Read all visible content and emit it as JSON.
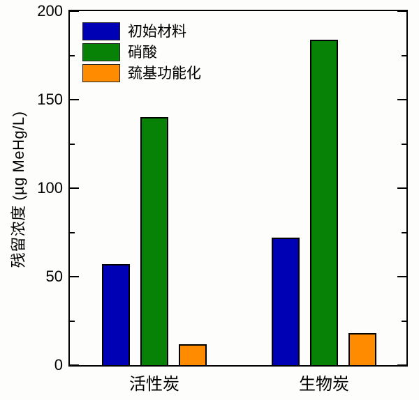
{
  "chart_data": {
    "type": "bar",
    "title": "",
    "categories": [
      "活性炭",
      "生物炭"
    ],
    "series": [
      {
        "name": "初始材料",
        "color": "#0000b4",
        "values": [
          57,
          72
        ]
      },
      {
        "name": "硝酸",
        "color": "#078207",
        "values": [
          140,
          184
        ]
      },
      {
        "name": "巯基功能化",
        "color": "#ff8c00",
        "values": [
          12,
          18
        ]
      }
    ],
    "xlabel": "",
    "ylabel": "残留浓度 (µg MeHg/L)",
    "ylim": [
      0,
      200
    ],
    "yticks_major": [
      0,
      50,
      100,
      150,
      200
    ],
    "yticks_minor": [
      25,
      75,
      125,
      175
    ],
    "grid": false,
    "legend_position": "top-left",
    "bar_edge_color": "#000000",
    "frame_color": "#000000",
    "background_color": "#fdfdfc"
  }
}
